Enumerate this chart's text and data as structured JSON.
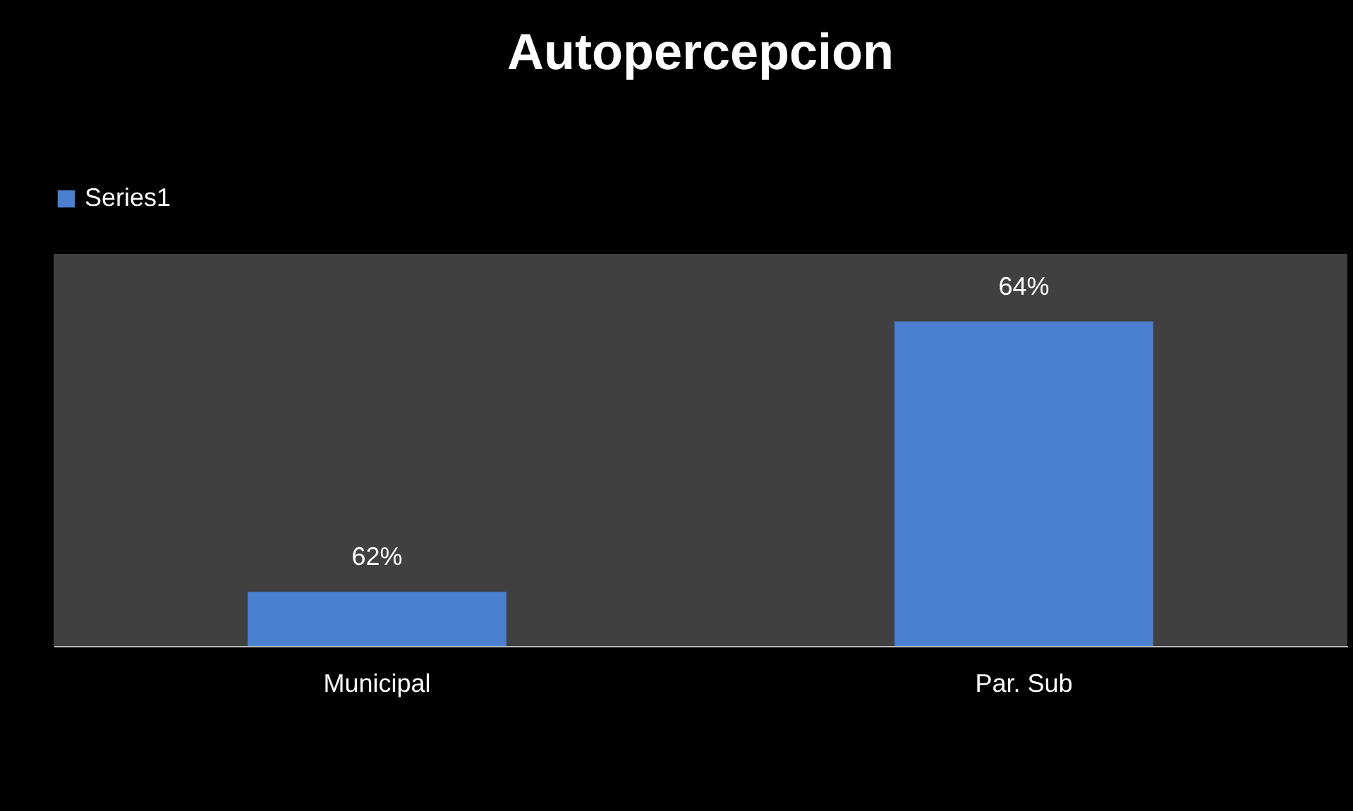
{
  "chart_data": {
    "type": "bar",
    "title": "Autopercepcion",
    "categories": [
      "Municipal",
      "Par. Sub"
    ],
    "series": [
      {
        "name": "Series1",
        "color": "#4a80cf",
        "values": [
          62,
          64
        ],
        "value_labels": [
          "62%",
          "64%"
        ]
      }
    ],
    "ylim": [
      61.6,
      64.5
    ],
    "legend": "top",
    "grid": false
  }
}
